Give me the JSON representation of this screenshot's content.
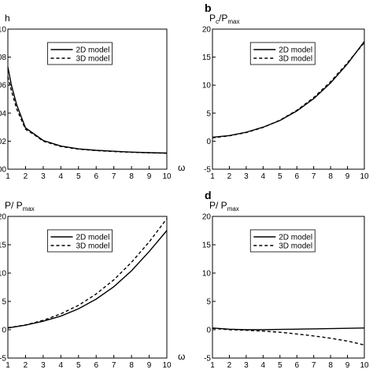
{
  "chart_data": [
    {
      "panel": "",
      "type": "line",
      "ylabel": "h",
      "ylabel_sub": "",
      "xlabel": "ω",
      "xlim": [
        1,
        10
      ],
      "ylim": [
        0,
        10
      ],
      "xticks": [
        "1",
        "2",
        "3",
        "4",
        "5",
        "6",
        "7",
        "8",
        "9",
        "10"
      ],
      "yticks": [
        "00",
        "02",
        "04",
        "06",
        "08",
        "10"
      ],
      "ytick_values": [
        0,
        2,
        4,
        6,
        8,
        10
      ],
      "legend": {
        "position": "top-right",
        "entries": [
          "2D model",
          "3D model"
        ]
      },
      "series": [
        {
          "name": "2D model",
          "style": "solid",
          "x": [
            1,
            1.2,
            1.5,
            2,
            2.5,
            3,
            4,
            5,
            6,
            7,
            8,
            9,
            10
          ],
          "y": [
            7.3,
            6.0,
            4.6,
            2.95,
            2.5,
            2.05,
            1.65,
            1.45,
            1.35,
            1.28,
            1.22,
            1.18,
            1.15
          ]
        },
        {
          "name": "3D model",
          "style": "dashed",
          "x": [
            1,
            1.2,
            1.5,
            2,
            2.5,
            3,
            4,
            5,
            6,
            7,
            8,
            9,
            10
          ],
          "y": [
            6.6,
            5.6,
            4.3,
            2.85,
            2.45,
            2.0,
            1.62,
            1.43,
            1.33,
            1.26,
            1.21,
            1.17,
            1.14
          ]
        }
      ]
    },
    {
      "panel": "b",
      "type": "line",
      "ylabel": "P",
      "ylabel_sub": "c",
      "ylabel_den": "P",
      "ylabel_den_sub": "max",
      "xlabel": "",
      "xlim": [
        1,
        10
      ],
      "ylim": [
        -5,
        20
      ],
      "xticks": [
        "1",
        "2",
        "3",
        "4",
        "5",
        "6",
        "7",
        "8",
        "9",
        "10"
      ],
      "xtick_last": "10",
      "yticks": [
        "-5",
        "0",
        "5",
        "10",
        "15",
        "20"
      ],
      "ytick_values": [
        -5,
        0,
        5,
        10,
        15,
        20
      ],
      "legend": {
        "position": "top-right",
        "entries": [
          "2D model",
          "3D model"
        ]
      },
      "series": [
        {
          "name": "2D model",
          "style": "solid",
          "x": [
            1,
            2,
            3,
            4,
            5,
            6,
            7,
            8,
            9,
            10
          ],
          "y": [
            0.7,
            1.0,
            1.6,
            2.5,
            3.7,
            5.4,
            7.6,
            10.4,
            13.8,
            17.8
          ]
        },
        {
          "name": "3D model",
          "style": "dashed",
          "x": [
            1,
            2,
            3,
            4,
            5,
            6,
            7,
            8,
            9,
            10
          ],
          "y": [
            0.6,
            0.95,
            1.55,
            2.45,
            3.75,
            5.5,
            7.8,
            10.6,
            14.0,
            17.6
          ]
        }
      ]
    },
    {
      "panel": "",
      "type": "line",
      "ylabel": "P/ P",
      "ylabel_sub": "max",
      "xlabel": "ω",
      "xlim": [
        1,
        10
      ],
      "ylim": [
        -5,
        20
      ],
      "xticks": [
        "1",
        "2",
        "3",
        "4",
        "5",
        "6",
        "7",
        "8",
        "9",
        "10"
      ],
      "yticks": [
        "-5",
        "0",
        "5",
        "10",
        "15",
        "20"
      ],
      "ytick_values": [
        -5,
        0,
        5,
        10,
        15,
        20
      ],
      "legend": {
        "position": "top-right",
        "entries": [
          "2D model",
          "3D model"
        ]
      },
      "series": [
        {
          "name": "2D model",
          "style": "solid",
          "x": [
            1,
            2,
            3,
            4,
            5,
            6,
            7,
            8,
            9,
            10
          ],
          "y": [
            0.3,
            0.8,
            1.5,
            2.4,
            3.7,
            5.4,
            7.6,
            10.4,
            13.8,
            17.5
          ]
        },
        {
          "name": "3D model",
          "style": "dashed",
          "x": [
            1,
            2,
            3,
            4,
            5,
            6,
            7,
            8,
            9,
            10
          ],
          "y": [
            0.35,
            0.85,
            1.65,
            2.8,
            4.3,
            6.3,
            8.8,
            11.9,
            15.5,
            19.6
          ]
        }
      ]
    },
    {
      "panel": "d",
      "type": "line",
      "ylabel": "P/ P",
      "ylabel_sub": "max",
      "xlabel": "",
      "xlim": [
        1,
        10
      ],
      "ylim": [
        -5,
        20
      ],
      "xticks": [
        "1",
        "2",
        "3",
        "4",
        "5",
        "6",
        "7",
        "8",
        "9",
        "10"
      ],
      "yticks": [
        "-5",
        "0",
        "5",
        "10",
        "15",
        "20"
      ],
      "ytick_values": [
        -5,
        0,
        5,
        10,
        15,
        20
      ],
      "legend": {
        "position": "top-right",
        "entries": [
          "2D model",
          "3D model"
        ]
      },
      "series": [
        {
          "name": "2D model",
          "style": "solid",
          "x": [
            1,
            2,
            3,
            4,
            5,
            6,
            7,
            8,
            9,
            10
          ],
          "y": [
            0.3,
            0.1,
            0.0,
            0.0,
            0.05,
            0.1,
            0.15,
            0.2,
            0.25,
            0.3
          ]
        },
        {
          "name": "3D model",
          "style": "dashed",
          "x": [
            1,
            2,
            3,
            4,
            5,
            6,
            7,
            8,
            9,
            10
          ],
          "y": [
            0.25,
            0.0,
            -0.1,
            -0.25,
            -0.45,
            -0.75,
            -1.1,
            -1.5,
            -2.0,
            -2.7
          ]
        }
      ]
    }
  ]
}
